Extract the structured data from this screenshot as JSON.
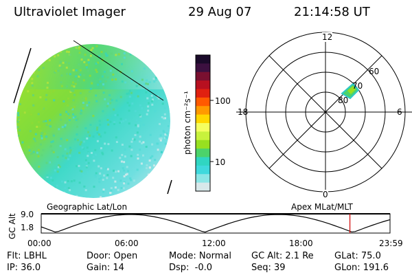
{
  "header": {
    "instrument": "Ultraviolet Imager",
    "date": "29 Aug 07",
    "time": "21:14:58 UT"
  },
  "colorbar": {
    "unit": "photon cm⁻²s⁻¹",
    "ticks": [
      "100",
      "10"
    ],
    "colors": [
      "#1a0a2a",
      "#3c1040",
      "#7a1030",
      "#b81020",
      "#e02010",
      "#ff5a00",
      "#ff9a00",
      "#ffd800",
      "#f4ff60",
      "#c8f23c",
      "#98e020",
      "#4cd36a",
      "#30d6c2",
      "#3fd9dd",
      "#8be6e6",
      "#d8e8ea"
    ]
  },
  "polar_plot": {
    "mlt_labels": [
      "12",
      "18",
      "6",
      "0"
    ],
    "mlat_labels": [
      "60",
      "70",
      "80"
    ]
  },
  "altitude_strip": {
    "left_label": "Geographic Lat/Lon",
    "right_label": "Apex MLat/MLT",
    "axis_title": "GC Alt",
    "y_ticks": [
      "9.0",
      "1.8"
    ],
    "x_ticks": [
      "00:00",
      "06:00",
      "12:00",
      "18:00",
      "23:59"
    ],
    "current_time_fraction": 0.885
  },
  "status": {
    "row1": [
      "Flt: LBHL",
      "Door: Open",
      "Mode: Normal",
      "GC Alt: 2.1 Re",
      "GLat: 75.0"
    ],
    "row2": [
      "IP: 36.0",
      "Gain: 14",
      "Dsp:  -0.0",
      "Seq: 39",
      "GLon: 191.6"
    ]
  }
}
